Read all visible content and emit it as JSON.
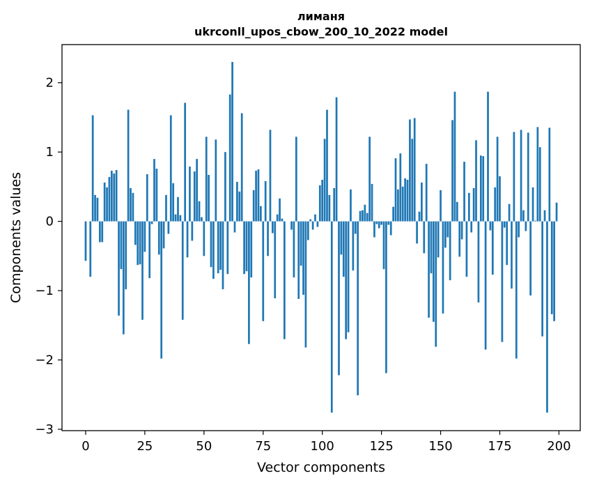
{
  "chart_data": {
    "type": "bar",
    "title_lines": [
      "лиманя",
      "ukrconll_upos_cbow_200_10_2022 model"
    ],
    "xlabel": "Vector components",
    "ylabel": "Components values",
    "xlim": [
      -10,
      209
    ],
    "ylim": [
      -3.02,
      2.55
    ],
    "xticks": [
      0,
      25,
      50,
      75,
      100,
      125,
      150,
      175,
      200
    ],
    "yticks": [
      -3,
      -2,
      -1,
      0,
      1,
      2
    ],
    "ytick_labels": [
      "−3",
      "−2",
      "−1",
      "0",
      "1",
      "2"
    ],
    "bar_color": "#1f77b4",
    "grid": false,
    "values": [
      -0.57,
      0.0,
      -0.8,
      1.53,
      0.38,
      0.34,
      -0.3,
      -0.3,
      0.56,
      0.49,
      0.64,
      0.73,
      0.69,
      0.74,
      -1.36,
      -0.69,
      -1.63,
      -0.98,
      1.61,
      0.48,
      0.41,
      -0.34,
      -0.63,
      -0.62,
      -1.42,
      -0.44,
      0.68,
      -0.82,
      -0.04,
      0.9,
      0.76,
      -0.48,
      -1.98,
      -0.39,
      0.38,
      -0.18,
      1.53,
      0.55,
      0.1,
      0.35,
      0.09,
      -1.42,
      1.71,
      -0.52,
      0.79,
      -0.28,
      0.72,
      0.9,
      0.29,
      0.06,
      -0.5,
      1.22,
      0.67,
      -0.66,
      -0.83,
      1.18,
      -0.75,
      -0.7,
      -0.98,
      1.0,
      -0.76,
      1.83,
      2.3,
      -0.16,
      0.57,
      0.43,
      1.56,
      -0.76,
      -0.72,
      -1.77,
      -0.81,
      0.45,
      0.73,
      0.75,
      0.22,
      -1.44,
      0.58,
      -0.5,
      1.32,
      -0.17,
      -1.11,
      0.1,
      0.33,
      0.04,
      -1.7,
      0.0,
      0.0,
      -0.12,
      -0.81,
      1.22,
      -1.12,
      -0.64,
      -1.06,
      -1.82,
      -0.27,
      0.03,
      -0.12,
      0.1,
      -0.08,
      0.52,
      0.6,
      1.19,
      1.61,
      0.38,
      -2.76,
      0.48,
      1.79,
      -2.22,
      -0.48,
      -0.8,
      -1.7,
      -1.6,
      0.46,
      -0.71,
      -0.18,
      -2.51,
      0.15,
      0.16,
      0.24,
      0.12,
      1.22,
      0.54,
      -0.23,
      -0.04,
      -0.1,
      -0.05,
      -0.69,
      -2.19,
      -0.05,
      -0.2,
      0.21,
      0.91,
      0.46,
      0.98,
      0.5,
      0.62,
      0.6,
      1.47,
      1.19,
      1.49,
      -0.32,
      0.14,
      0.56,
      -0.46,
      0.83,
      -1.39,
      -0.75,
      -1.45,
      -1.81,
      -0.52,
      0.45,
      -1.33,
      -0.38,
      -0.23,
      -0.85,
      1.46,
      1.87,
      0.28,
      -0.51,
      -0.26,
      0.86,
      -0.8,
      0.41,
      -0.16,
      0.48,
      1.17,
      -1.17,
      0.95,
      0.94,
      -1.85,
      1.87,
      -0.13,
      -0.77,
      0.49,
      1.22,
      0.65,
      -1.74,
      -0.09,
      -0.63,
      0.25,
      -0.97,
      1.29,
      -1.98,
      -0.23,
      1.32,
      0.16,
      -0.14,
      1.28,
      -1.07,
      0.49,
      0.01,
      1.36,
      1.07,
      -1.66,
      0.16,
      -2.76,
      1.35,
      -1.34,
      -1.44,
      0.27
    ]
  }
}
